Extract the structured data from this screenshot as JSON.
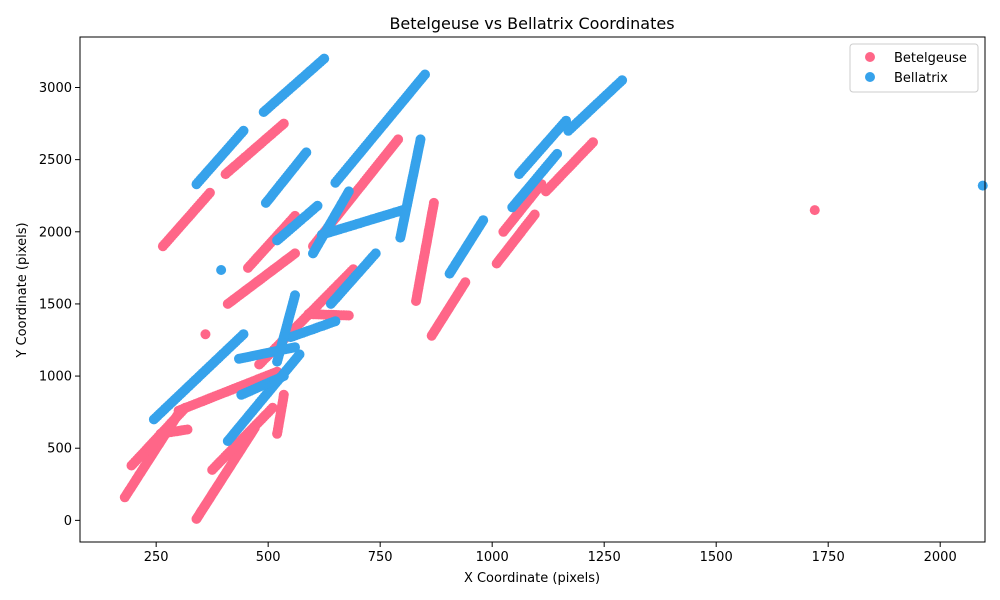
{
  "chart_data": {
    "type": "scatter",
    "title": "Betelgeuse vs Bellatrix Coordinates",
    "xlabel": "X Coordinate (pixels)",
    "ylabel": "Y Coordinate (pixels)",
    "xlim": [
      80,
      2100
    ],
    "ylim": [
      -150,
      3350
    ],
    "xticks": [
      250,
      500,
      750,
      1000,
      1250,
      1500,
      1750,
      2000
    ],
    "yticks": [
      0,
      500,
      1000,
      1500,
      2000,
      2500,
      3000
    ],
    "grid": false,
    "legend": "top-right",
    "series": [
      {
        "name": "Betelgeuse",
        "color": "#ff6688",
        "segments": [
          [
            [
              180,
              160
            ],
            [
              300,
              740
            ]
          ],
          [
            [
              265,
              1900
            ],
            [
              370,
              2270
            ]
          ],
          [
            [
              195,
              380
            ],
            [
              315,
              780
            ]
          ],
          [
            [
              340,
              10
            ],
            [
              470,
              640
            ]
          ],
          [
            [
              260,
              600
            ],
            [
              320,
              630
            ]
          ],
          [
            [
              300,
              760
            ],
            [
              520,
              1030
            ]
          ],
          [
            [
              410,
              1500
            ],
            [
              560,
              1850
            ]
          ],
          [
            [
              405,
              2400
            ],
            [
              535,
              2750
            ]
          ],
          [
            [
              455,
              1750
            ],
            [
              560,
              2110
            ]
          ],
          [
            [
              375,
              350
            ],
            [
              510,
              780
            ]
          ],
          [
            [
              520,
              600
            ],
            [
              535,
              870
            ]
          ],
          [
            [
              480,
              1080
            ],
            [
              690,
              1740
            ]
          ],
          [
            [
              590,
              1430
            ],
            [
              680,
              1420
            ]
          ],
          [
            [
              600,
              1900
            ],
            [
              790,
              2640
            ]
          ],
          [
            [
              830,
              1520
            ],
            [
              870,
              2200
            ]
          ],
          [
            [
              865,
              1280
            ],
            [
              940,
              1650
            ]
          ],
          [
            [
              1010,
              1780
            ],
            [
              1095,
              2120
            ]
          ],
          [
            [
              1025,
              2000
            ],
            [
              1110,
              2330
            ]
          ],
          [
            [
              1120,
              2280
            ],
            [
              1225,
              2620
            ]
          ]
        ],
        "points": [
          [
            360,
            1290
          ],
          [
            1720,
            2150
          ]
        ]
      },
      {
        "name": "Bellatrix",
        "color": "#36a2eb",
        "segments": [
          [
            [
              245,
              700
            ],
            [
              445,
              1290
            ]
          ],
          [
            [
              340,
              2330
            ],
            [
              445,
              2700
            ]
          ],
          [
            [
              490,
              2830
            ],
            [
              625,
              3200
            ]
          ],
          [
            [
              495,
              2200
            ],
            [
              585,
              2550
            ]
          ],
          [
            [
              520,
              1940
            ],
            [
              610,
              2180
            ]
          ],
          [
            [
              550,
              1270
            ],
            [
              650,
              1380
            ]
          ],
          [
            [
              435,
              1120
            ],
            [
              560,
              1200
            ]
          ],
          [
            [
              410,
              550
            ],
            [
              570,
              1150
            ]
          ],
          [
            [
              440,
              870
            ],
            [
              535,
              1000
            ]
          ],
          [
            [
              520,
              1100
            ],
            [
              560,
              1560
            ]
          ],
          [
            [
              600,
              1850
            ],
            [
              680,
              2280
            ]
          ],
          [
            [
              640,
              1500
            ],
            [
              740,
              1850
            ]
          ],
          [
            [
              650,
              2340
            ],
            [
              850,
              3090
            ]
          ],
          [
            [
              620,
              1980
            ],
            [
              800,
              2150
            ]
          ],
          [
            [
              795,
              1960
            ],
            [
              840,
              2640
            ]
          ],
          [
            [
              905,
              1710
            ],
            [
              980,
              2080
            ]
          ],
          [
            [
              1045,
              2170
            ],
            [
              1145,
              2540
            ]
          ],
          [
            [
              1060,
              2400
            ],
            [
              1165,
              2770
            ]
          ],
          [
            [
              1170,
              2700
            ],
            [
              1290,
              3050
            ]
          ]
        ],
        "points": [
          [
            395,
            1735
          ],
          [
            2095,
            2320
          ]
        ]
      }
    ]
  }
}
